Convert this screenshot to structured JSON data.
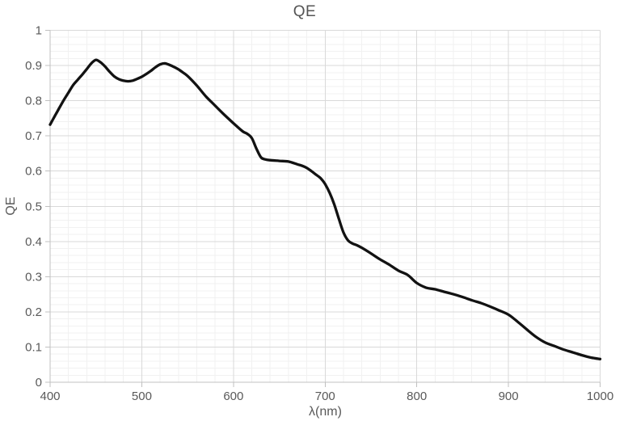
{
  "chart_data": {
    "type": "line",
    "title": "QE",
    "xlabel": "λ(nm)",
    "ylabel": "QE",
    "xlim": [
      400,
      1000
    ],
    "ylim": [
      0,
      1
    ],
    "grid": {
      "major": true,
      "minor": true
    },
    "x_minor_step": 20,
    "y_minor_step": 0.02,
    "legend": "none",
    "line_color": "#121212",
    "x_ticks": [
      {
        "v": 400,
        "label": "400"
      },
      {
        "v": 500,
        "label": "500"
      },
      {
        "v": 600,
        "label": "600"
      },
      {
        "v": 700,
        "label": "700"
      },
      {
        "v": 800,
        "label": "800"
      },
      {
        "v": 900,
        "label": "900"
      },
      {
        "v": 1000,
        "label": "1000"
      }
    ],
    "y_ticks": [
      {
        "v": 0,
        "label": "0"
      },
      {
        "v": 0.1,
        "label": "0.1"
      },
      {
        "v": 0.2,
        "label": "0.2"
      },
      {
        "v": 0.3,
        "label": "0.3"
      },
      {
        "v": 0.4,
        "label": "0.4"
      },
      {
        "v": 0.5,
        "label": "0.5"
      },
      {
        "v": 0.6,
        "label": "0.6"
      },
      {
        "v": 0.7,
        "label": "0.7"
      },
      {
        "v": 0.8,
        "label": "0.8"
      },
      {
        "v": 0.9,
        "label": "0.9"
      },
      {
        "v": 1,
        "label": "1"
      }
    ],
    "series": [
      {
        "name": "QE",
        "points": [
          [
            400,
            0.732
          ],
          [
            405,
            0.756
          ],
          [
            410,
            0.779
          ],
          [
            415,
            0.802
          ],
          [
            420,
            0.823
          ],
          [
            425,
            0.844
          ],
          [
            430,
            0.859
          ],
          [
            435,
            0.874
          ],
          [
            440,
            0.89
          ],
          [
            445,
            0.906
          ],
          [
            450,
            0.916
          ],
          [
            455,
            0.909
          ],
          [
            460,
            0.897
          ],
          [
            465,
            0.882
          ],
          [
            470,
            0.869
          ],
          [
            475,
            0.861
          ],
          [
            480,
            0.857
          ],
          [
            485,
            0.855
          ],
          [
            490,
            0.857
          ],
          [
            495,
            0.862
          ],
          [
            500,
            0.868
          ],
          [
            505,
            0.876
          ],
          [
            510,
            0.885
          ],
          [
            515,
            0.895
          ],
          [
            520,
            0.903
          ],
          [
            525,
            0.906
          ],
          [
            530,
            0.902
          ],
          [
            535,
            0.896
          ],
          [
            540,
            0.889
          ],
          [
            545,
            0.88
          ],
          [
            550,
            0.87
          ],
          [
            560,
            0.843
          ],
          [
            570,
            0.812
          ],
          [
            580,
            0.786
          ],
          [
            590,
            0.76
          ],
          [
            600,
            0.736
          ],
          [
            610,
            0.713
          ],
          [
            615,
            0.706
          ],
          [
            620,
            0.694
          ],
          [
            625,
            0.664
          ],
          [
            630,
            0.639
          ],
          [
            635,
            0.633
          ],
          [
            640,
            0.631
          ],
          [
            650,
            0.629
          ],
          [
            660,
            0.627
          ],
          [
            670,
            0.619
          ],
          [
            675,
            0.615
          ],
          [
            680,
            0.609
          ],
          [
            685,
            0.6
          ],
          [
            690,
            0.59
          ],
          [
            695,
            0.58
          ],
          [
            700,
            0.563
          ],
          [
            705,
            0.538
          ],
          [
            710,
            0.505
          ],
          [
            715,
            0.464
          ],
          [
            720,
            0.426
          ],
          [
            725,
            0.403
          ],
          [
            730,
            0.394
          ],
          [
            735,
            0.389
          ],
          [
            740,
            0.382
          ],
          [
            750,
            0.366
          ],
          [
            760,
            0.349
          ],
          [
            770,
            0.334
          ],
          [
            780,
            0.317
          ],
          [
            790,
            0.305
          ],
          [
            800,
            0.282
          ],
          [
            810,
            0.269
          ],
          [
            820,
            0.264
          ],
          [
            830,
            0.257
          ],
          [
            840,
            0.25
          ],
          [
            850,
            0.242
          ],
          [
            860,
            0.233
          ],
          [
            870,
            0.225
          ],
          [
            880,
            0.215
          ],
          [
            890,
            0.204
          ],
          [
            900,
            0.192
          ],
          [
            910,
            0.172
          ],
          [
            920,
            0.15
          ],
          [
            930,
            0.129
          ],
          [
            940,
            0.113
          ],
          [
            950,
            0.103
          ],
          [
            960,
            0.093
          ],
          [
            970,
            0.085
          ],
          [
            980,
            0.077
          ],
          [
            990,
            0.07
          ],
          [
            1000,
            0.066
          ]
        ]
      }
    ]
  }
}
